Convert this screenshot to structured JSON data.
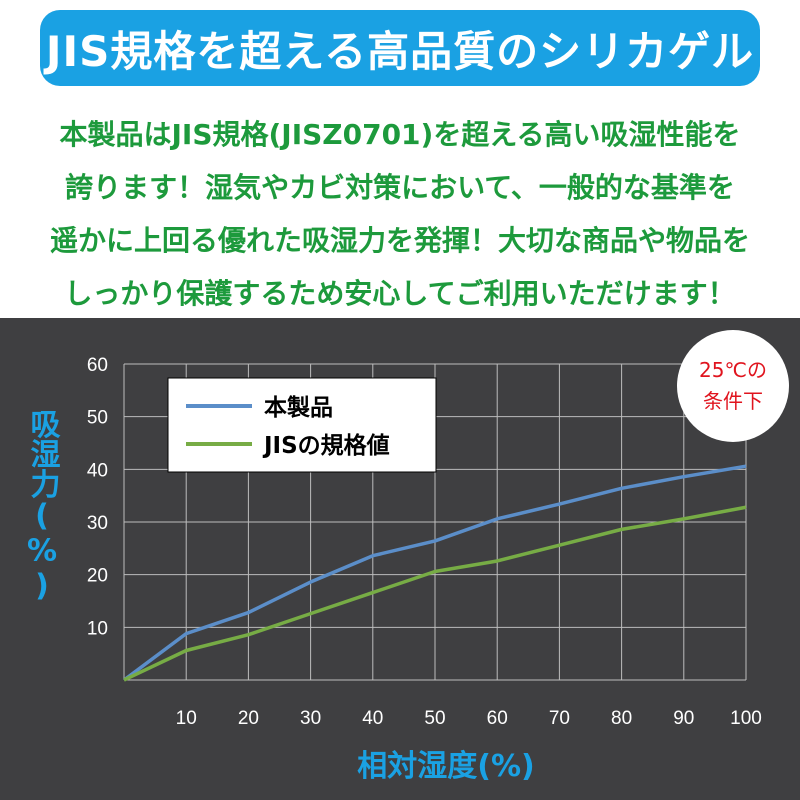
{
  "header": {
    "title": "JIS規格を超える高品質のシリカゲル"
  },
  "description": {
    "lines": [
      "本製品はJIS規格(JISZ0701)を超える高い吸湿性能を",
      "誇ります！湿気やカビ対策において、一般的な基準を",
      "遥かに上回る優れた吸湿力を発揮！大切な商品や物品を",
      "しっかり保護するため安心してご利用いただけます！"
    ]
  },
  "badge": {
    "line1": "25℃の",
    "line2": "条件下"
  },
  "colors": {
    "title_bg": "#1aa1e3",
    "desc_text": "#1d9a3c",
    "chart_bg": "#3f3f41",
    "axis_label": "#1aa1e3",
    "product_line": "#5b8ec9",
    "jis_line": "#77ac45",
    "badge_text": "#e0141e"
  },
  "chart_data": {
    "type": "line",
    "x": [
      0,
      10,
      20,
      30,
      40,
      50,
      60,
      70,
      80,
      90,
      100
    ],
    "series": [
      {
        "name": "本製品",
        "color": "#5b8ec9",
        "values": [
          0,
          8.8,
          12.8,
          18.6,
          23.6,
          26.4,
          30.6,
          33.4,
          36.4,
          38.6,
          40.6
        ]
      },
      {
        "name": "JISの規格値",
        "color": "#77ac45",
        "values": [
          0,
          5.6,
          8.6,
          12.6,
          16.6,
          20.6,
          22.6,
          25.6,
          28.6,
          30.6,
          32.8
        ]
      }
    ],
    "xlabel": "相対湿度(%)",
    "ylabel": "吸湿力(%)",
    "xticks": [
      "10",
      "20",
      "30",
      "40",
      "50",
      "60",
      "70",
      "80",
      "90",
      "100"
    ],
    "yticks": [
      "10",
      "20",
      "30",
      "40",
      "50",
      "60"
    ],
    "xlim": [
      0,
      100
    ],
    "ylim": [
      0,
      60
    ],
    "grid": true,
    "legend_position": "top-left"
  }
}
